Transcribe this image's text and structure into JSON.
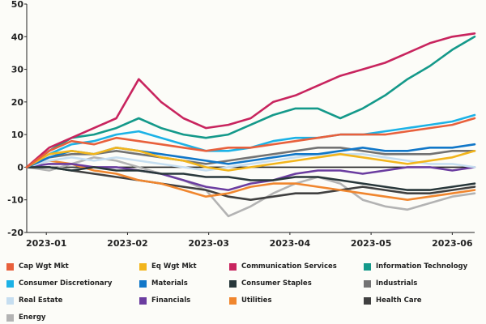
{
  "chart_data": {
    "type": "line",
    "title": "",
    "xlabel": "",
    "ylabel": "",
    "ylim": [
      -20,
      50
    ],
    "yticks": [
      -20,
      -10,
      0,
      10,
      20,
      30,
      40,
      50
    ],
    "ytick_labels": [
      "-20",
      "-10",
      "0",
      "10",
      "20",
      "30",
      "40",
      "50"
    ],
    "xlim": [
      0,
      160
    ],
    "xtick_positions": [
      7,
      36,
      65,
      94,
      123,
      152
    ],
    "xtick_labels": [
      "2023-01",
      "2023-02",
      "2023-03",
      "2023-04",
      "2023-05",
      "2023-06"
    ],
    "x": [
      0,
      8,
      16,
      24,
      32,
      40,
      48,
      56,
      64,
      72,
      80,
      88,
      96,
      104,
      112,
      120,
      128,
      136,
      144,
      152,
      160
    ],
    "series": [
      {
        "name": "Cap Wgt Mkt",
        "color": "#e8603c",
        "values": [
          0,
          5,
          8,
          7,
          9,
          8,
          7,
          6,
          5,
          6,
          6,
          7,
          8,
          9,
          10,
          10,
          10,
          11,
          12,
          13,
          15
        ]
      },
      {
        "name": "Eq Wgt Mkt",
        "color": "#f2b51c",
        "values": [
          0,
          4,
          5,
          4,
          6,
          5,
          3,
          2,
          0,
          -1,
          0,
          1,
          2,
          3,
          4,
          3,
          2,
          1,
          2,
          3,
          5
        ]
      },
      {
        "name": "Communication Services",
        "color": "#c8245e",
        "values": [
          0,
          6,
          9,
          12,
          15,
          27,
          20,
          15,
          12,
          13,
          15,
          20,
          22,
          25,
          28,
          30,
          32,
          35,
          38,
          40,
          41
        ]
      },
      {
        "name": "Information Technology",
        "color": "#14998a",
        "values": [
          0,
          5,
          9,
          10,
          12,
          15,
          12,
          10,
          9,
          10,
          13,
          16,
          18,
          18,
          15,
          18,
          22,
          27,
          31,
          36,
          40
        ]
      },
      {
        "name": "Consumer Discretionary",
        "color": "#1cb2e6",
        "values": [
          0,
          4,
          7,
          8,
          10,
          11,
          9,
          7,
          5,
          5,
          6,
          8,
          9,
          9,
          10,
          10,
          11,
          12,
          13,
          14,
          16
        ]
      },
      {
        "name": "Materials",
        "color": "#1177c8",
        "values": [
          0,
          3,
          5,
          4,
          6,
          5,
          4,
          3,
          2,
          1,
          2,
          3,
          4,
          4,
          5,
          6,
          5,
          5,
          6,
          6,
          7
        ]
      },
      {
        "name": "Consumer Staples",
        "color": "#28373a",
        "values": [
          0,
          0,
          -1,
          0,
          -1,
          -1,
          -2,
          -2,
          -3,
          -3,
          -4,
          -4,
          -3,
          -3,
          -4,
          -5,
          -6,
          -7,
          -7,
          -6,
          -5
        ]
      },
      {
        "name": "Industrials",
        "color": "#737373",
        "values": [
          0,
          3,
          4,
          4,
          5,
          4,
          3,
          2,
          1,
          2,
          3,
          4,
          5,
          6,
          6,
          5,
          4,
          4,
          4,
          5,
          5
        ]
      },
      {
        "name": "Real Estate",
        "color": "#c6def0",
        "values": [
          0,
          2,
          3,
          2,
          3,
          2,
          1,
          0,
          -1,
          0,
          1,
          2,
          3,
          4,
          4,
          4,
          3,
          2,
          1,
          1,
          0
        ]
      },
      {
        "name": "Financials",
        "color": "#6b3da0",
        "values": [
          0,
          1,
          1,
          0,
          0,
          -1,
          -2,
          -4,
          -6,
          -7,
          -5,
          -4,
          -2,
          -1,
          -1,
          -2,
          -1,
          0,
          0,
          -1,
          0
        ]
      },
      {
        "name": "Utilities",
        "color": "#f0862e",
        "values": [
          0,
          2,
          1,
          -1,
          -2,
          -4,
          -5,
          -7,
          -9,
          -8,
          -6,
          -5,
          -5,
          -6,
          -7,
          -8,
          -9,
          -10,
          -9,
          -8,
          -7
        ]
      },
      {
        "name": "Health Care",
        "color": "#404040",
        "values": [
          0,
          0,
          -1,
          -2,
          -3,
          -4,
          -5,
          -6,
          -7,
          -9,
          -10,
          -9,
          -8,
          -8,
          -7,
          -6,
          -7,
          -8,
          -8,
          -7,
          -6
        ]
      },
      {
        "name": "Energy",
        "color": "#b3b3b3",
        "values": [
          0,
          -1,
          1,
          3,
          2,
          0,
          -2,
          -4,
          -7,
          -15,
          -12,
          -8,
          -5,
          -3,
          -5,
          -10,
          -12,
          -13,
          -11,
          -9,
          -8
        ]
      }
    ]
  },
  "legend": {
    "items": [
      {
        "label": "Cap Wgt Mkt",
        "color": "#e8603c"
      },
      {
        "label": "Eq Wgt Mkt",
        "color": "#f2b51c"
      },
      {
        "label": "Communication Services",
        "color": "#c8245e"
      },
      {
        "label": "Information Technology",
        "color": "#14998a"
      },
      {
        "label": "Consumer Discretionary",
        "color": "#1cb2e6"
      },
      {
        "label": "Materials",
        "color": "#1177c8"
      },
      {
        "label": "Consumer Staples",
        "color": "#28373a"
      },
      {
        "label": "Industrials",
        "color": "#737373"
      },
      {
        "label": "Real Estate",
        "color": "#c6def0"
      },
      {
        "label": "Financials",
        "color": "#6b3da0"
      },
      {
        "label": "Utilities",
        "color": "#f0862e"
      },
      {
        "label": "Health Care",
        "color": "#404040"
      },
      {
        "label": "Energy",
        "color": "#b3b3b3"
      }
    ]
  }
}
